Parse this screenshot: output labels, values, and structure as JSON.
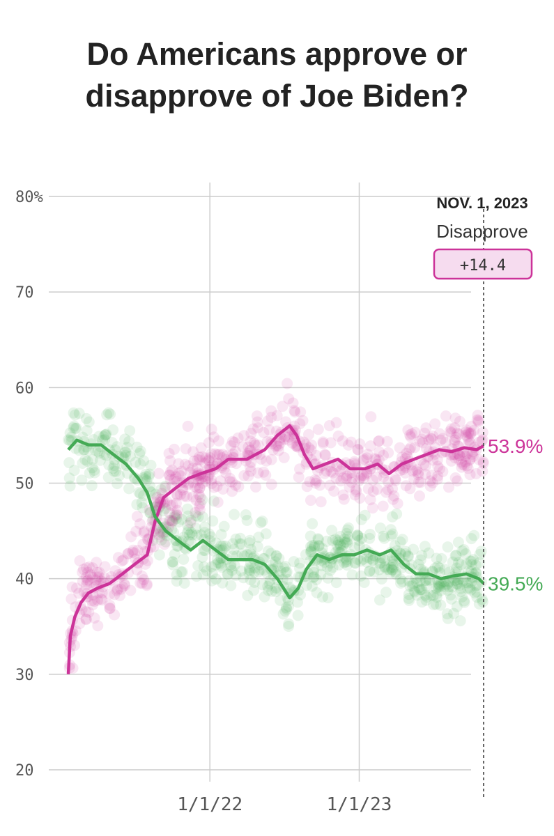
{
  "title": "Do Americans approve or disapprove of Joe Biden?",
  "chart_data": {
    "type": "line",
    "title": "Do Americans approve or disapprove of Joe Biden?",
    "xlabel": "",
    "ylabel": "",
    "x_range": [
      "2021-01-20",
      "2023-11-01"
    ],
    "ylim": [
      20,
      80
    ],
    "y_ticks": [
      "80%",
      "70",
      "60",
      "50",
      "40",
      "30",
      "20"
    ],
    "x_ticks": [
      {
        "label": "1/1/22",
        "date": "2022-01-01"
      },
      {
        "label": "1/1/23",
        "date": "2023-01-01"
      }
    ],
    "grid": true,
    "series": [
      {
        "color": "#cc3399",
        "end_label": "53.9%",
        "points": [
          [
            "2021-01-20",
            30
          ],
          [
            "2021-01-25",
            34
          ],
          [
            "2021-02-05",
            36
          ],
          [
            "2021-02-20",
            37.5
          ],
          [
            "2021-03-10",
            38.5
          ],
          [
            "2021-04-01",
            39
          ],
          [
            "2021-05-01",
            39.5
          ],
          [
            "2021-06-01",
            40.5
          ],
          [
            "2021-07-01",
            41.5
          ],
          [
            "2021-08-01",
            42.5
          ],
          [
            "2021-08-20",
            46
          ],
          [
            "2021-09-10",
            48.5
          ],
          [
            "2021-10-10",
            49.5
          ],
          [
            "2021-11-10",
            50.5
          ],
          [
            "2021-12-10",
            51
          ],
          [
            "2022-01-15",
            51.5
          ],
          [
            "2022-02-15",
            52.5
          ],
          [
            "2022-04-01",
            52.5
          ],
          [
            "2022-05-15",
            53.5
          ],
          [
            "2022-06-15",
            55
          ],
          [
            "2022-07-15",
            56
          ],
          [
            "2022-08-01",
            55
          ],
          [
            "2022-08-20",
            53
          ],
          [
            "2022-09-10",
            51.5
          ],
          [
            "2022-10-10",
            52
          ],
          [
            "2022-11-10",
            52.5
          ],
          [
            "2022-12-10",
            51.5
          ],
          [
            "2023-01-15",
            51.5
          ],
          [
            "2023-02-15",
            52
          ],
          [
            "2023-03-15",
            51
          ],
          [
            "2023-04-15",
            52
          ],
          [
            "2023-05-15",
            52.5
          ],
          [
            "2023-06-15",
            53
          ],
          [
            "2023-07-15",
            53.5
          ],
          [
            "2023-08-15",
            53.3
          ],
          [
            "2023-09-15",
            53.7
          ],
          [
            "2023-10-15",
            53.5
          ],
          [
            "2023-11-01",
            53.9
          ]
        ]
      },
      {
        "color": "#44aa55",
        "end_label": "39.5%",
        "points": [
          [
            "2021-01-20",
            53.5
          ],
          [
            "2021-02-10",
            54.5
          ],
          [
            "2021-03-10",
            54
          ],
          [
            "2021-04-10",
            54
          ],
          [
            "2021-05-10",
            53
          ],
          [
            "2021-06-10",
            52
          ],
          [
            "2021-07-10",
            50.5
          ],
          [
            "2021-08-01",
            49
          ],
          [
            "2021-08-20",
            46.5
          ],
          [
            "2021-09-15",
            45
          ],
          [
            "2021-10-15",
            44
          ],
          [
            "2021-11-15",
            43
          ],
          [
            "2021-12-15",
            44
          ],
          [
            "2022-01-15",
            43
          ],
          [
            "2022-02-15",
            42
          ],
          [
            "2022-03-15",
            42
          ],
          [
            "2022-04-15",
            42
          ],
          [
            "2022-05-15",
            41.5
          ],
          [
            "2022-06-15",
            40
          ],
          [
            "2022-07-15",
            38
          ],
          [
            "2022-08-05",
            39
          ],
          [
            "2022-08-25",
            41
          ],
          [
            "2022-09-20",
            42.5
          ],
          [
            "2022-10-20",
            42
          ],
          [
            "2022-11-20",
            42.5
          ],
          [
            "2022-12-20",
            42.5
          ],
          [
            "2023-01-20",
            43
          ],
          [
            "2023-02-20",
            42.5
          ],
          [
            "2023-03-20",
            43
          ],
          [
            "2023-04-20",
            41.5
          ],
          [
            "2023-05-20",
            40.5
          ],
          [
            "2023-06-20",
            40.5
          ],
          [
            "2023-07-20",
            40
          ],
          [
            "2023-08-20",
            40.3
          ],
          [
            "2023-09-20",
            40.5
          ],
          [
            "2023-10-20",
            40
          ],
          [
            "2023-11-01",
            39.5
          ]
        ]
      }
    ],
    "annotation": {
      "date": "2023-11-01",
      "date_label": "NOV. 1, 2023",
      "label": "Disapprove",
      "value": "+14.4",
      "color": "#cc3399"
    }
  }
}
